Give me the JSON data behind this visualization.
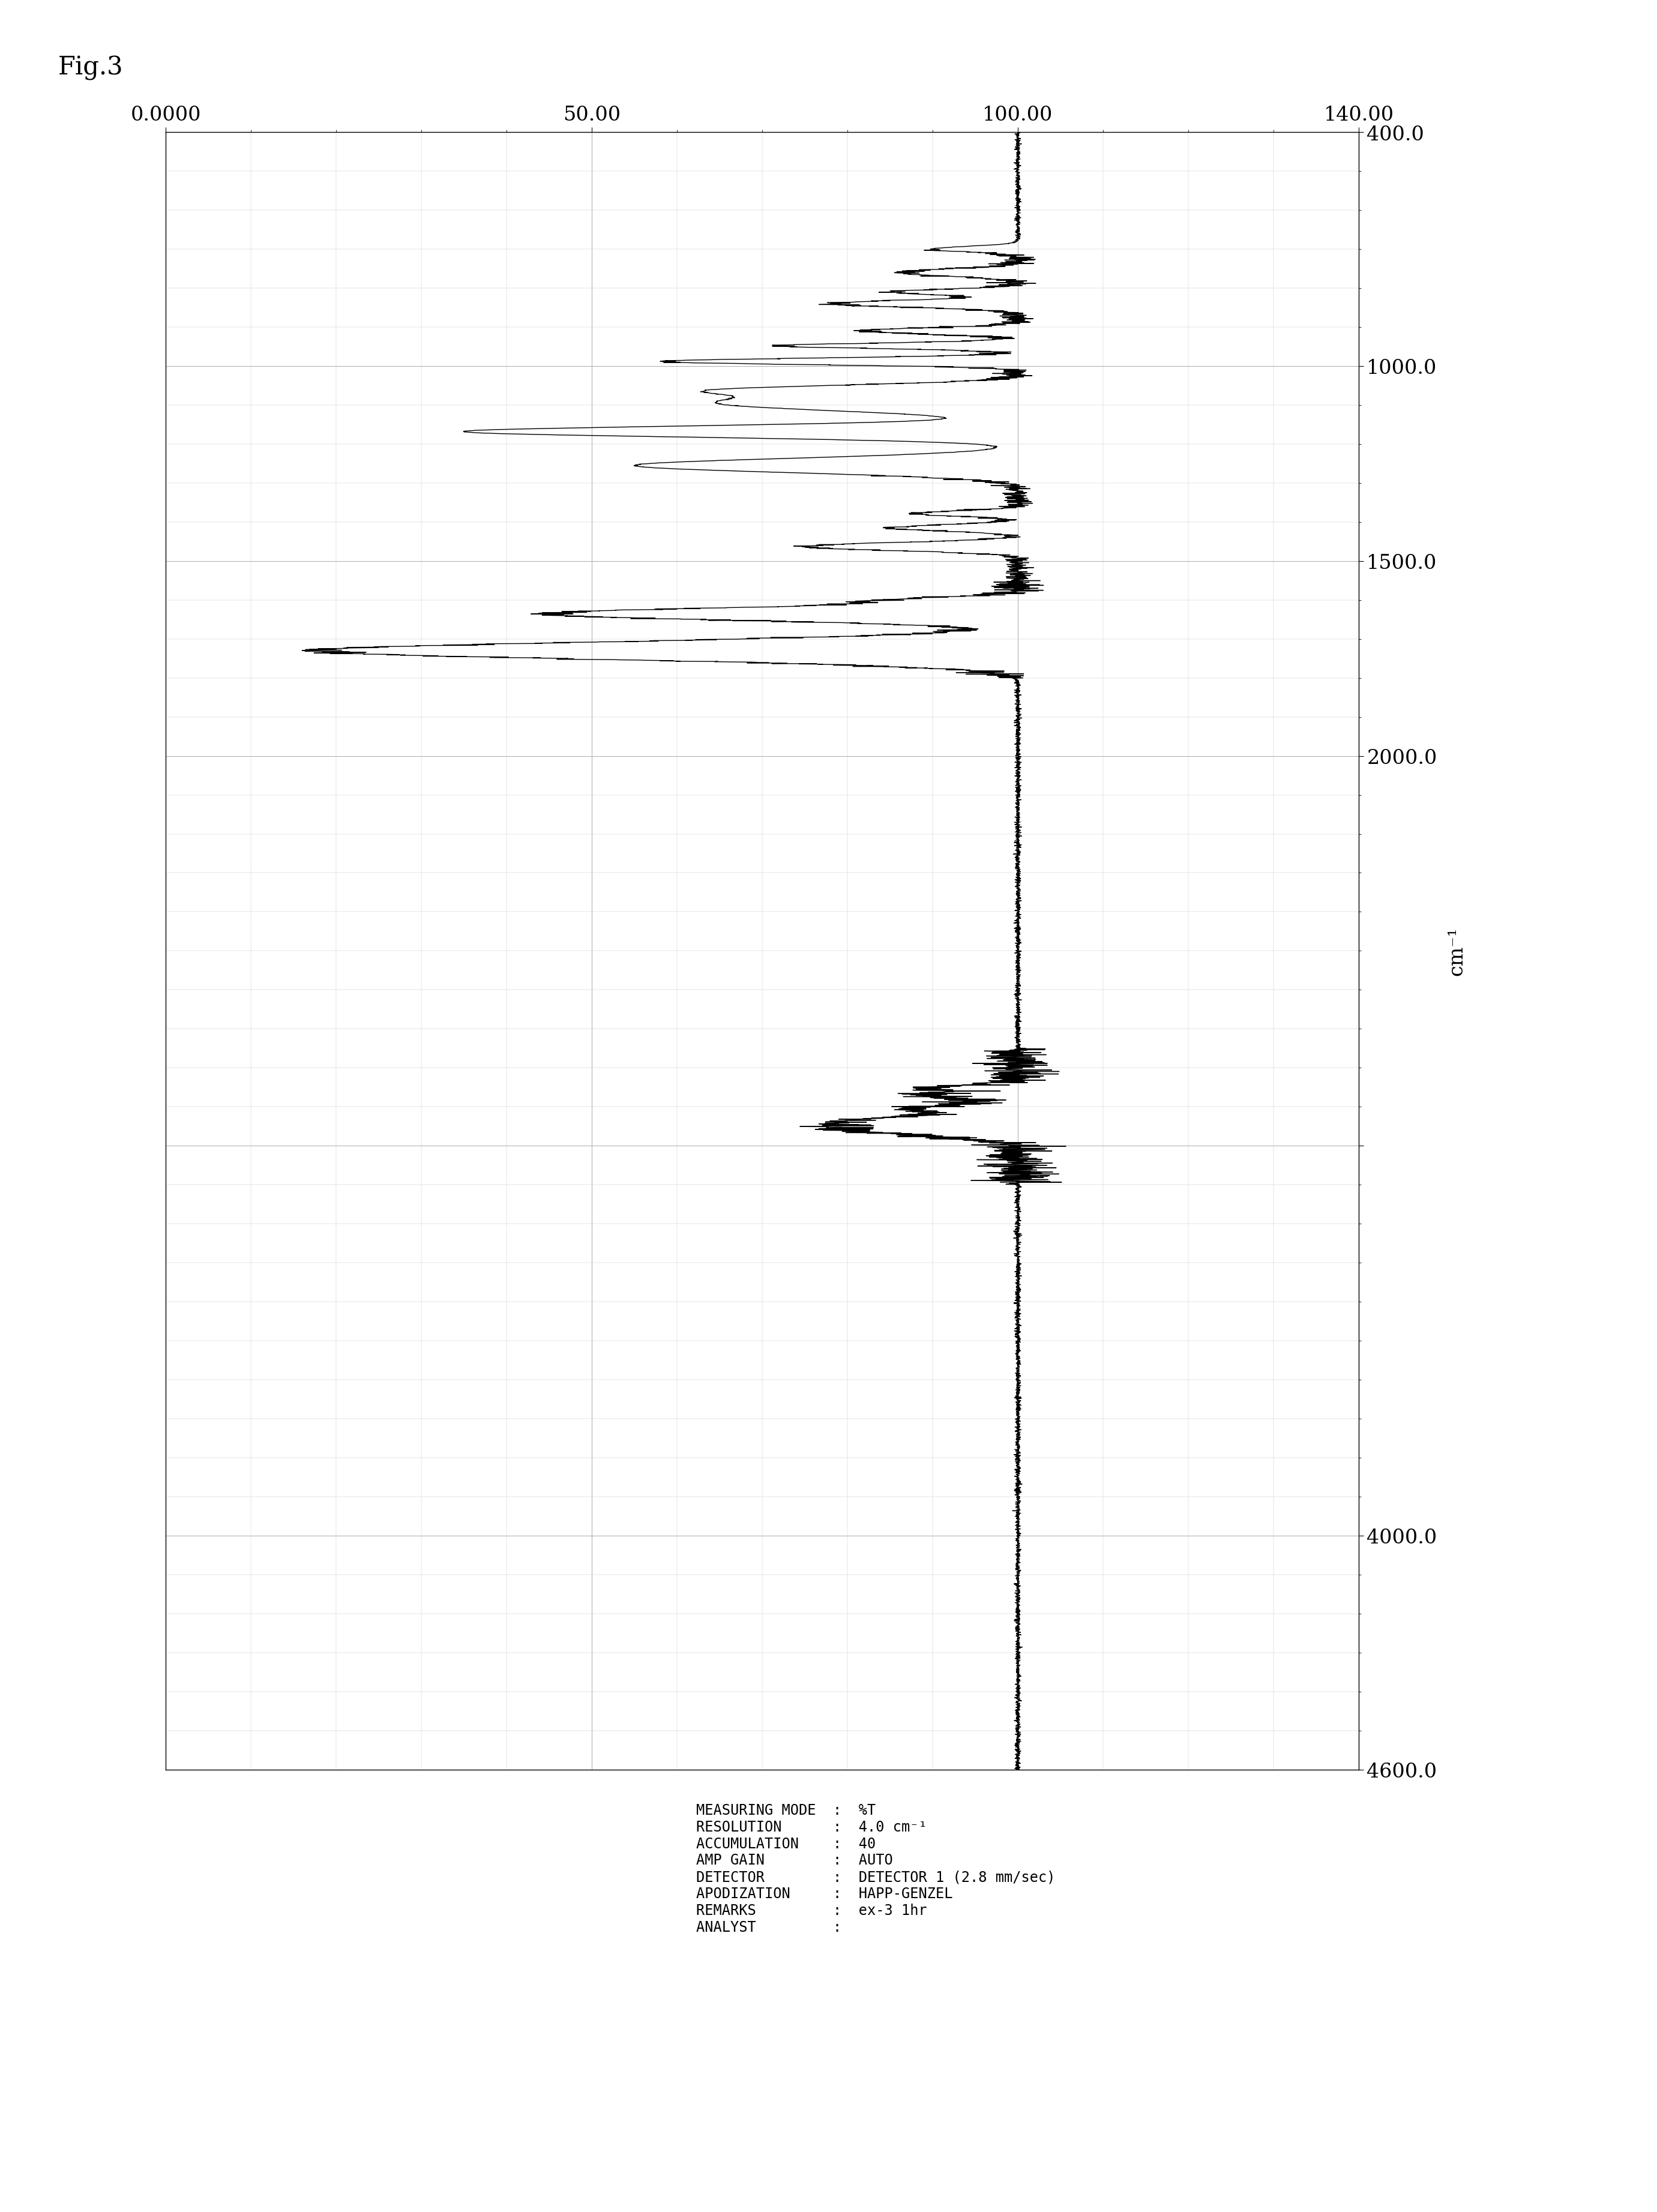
{
  "title": "Fig.3",
  "ylabel_top": "cm-1",
  "xlabel_left": "%T",
  "xmin": 0.0,
  "xmax": 140.0,
  "ymin": 400,
  "ymax": 4600,
  "xticks": [
    0.0,
    50.0,
    100.0,
    140.0
  ],
  "xtick_labels": [
    "0.0000",
    "50.00",
    "100.00",
    "140.00"
  ],
  "yticks": [
    400,
    1000,
    1500,
    2000,
    3000,
    4000,
    4600
  ],
  "ytick_labels": [
    "400.0",
    "1000.0",
    "1500.0",
    "2000.0",
    "",
    "4000.0",
    "4600.0"
  ],
  "annotation_lines": [
    "MEASURING MODE  :  %T",
    "RESOLUTION      :  4.0 cm-1",
    "ACCUMULATION    :  40",
    "AMP GAIN        :  AUTO",
    "DETECTOR        :  DETECTOR 1 (2.8 mm/sec)",
    "APODIZATION     :  HAPP-GENZEL",
    "REMARKS         :  ex-3 1hr",
    "ANALYST         :"
  ],
  "background_color": "#ffffff",
  "line_color": "#000000",
  "grid_color": "#aaaaaa",
  "grid_minor_color": "#cccccc"
}
